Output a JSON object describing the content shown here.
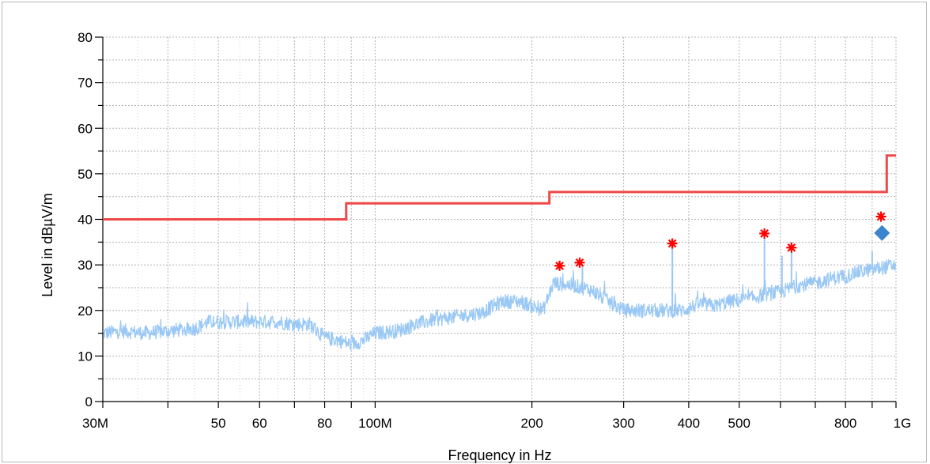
{
  "chart_data": {
    "type": "line",
    "title": "",
    "xlabel": "Frequency in Hz",
    "ylabel": "Level in dBµV/m",
    "x_scale": "log",
    "xlim": [
      30000000,
      1000000000
    ],
    "ylim": [
      0,
      80
    ],
    "grid": true,
    "x_tick_labels": [
      {
        "value": 30000000,
        "label": "30M"
      },
      {
        "value": 50000000,
        "label": "50"
      },
      {
        "value": 60000000,
        "label": "60"
      },
      {
        "value": 80000000,
        "label": "80"
      },
      {
        "value": 100000000,
        "label": "100M"
      },
      {
        "value": 200000000,
        "label": "200"
      },
      {
        "value": 300000000,
        "label": "300"
      },
      {
        "value": 400000000,
        "label": "400"
      },
      {
        "value": 500000000,
        "label": "500"
      },
      {
        "value": 800000000,
        "label": "800"
      },
      {
        "value": 1000000000,
        "label": "1G"
      }
    ],
    "y_ticks": [
      0,
      10,
      20,
      30,
      40,
      50,
      60,
      70,
      80
    ],
    "colors": {
      "limit": "#f04848",
      "trace": "#99c8f5",
      "peak_marker": "#ff0000",
      "final_marker": "#3a84d0",
      "grid": "#b4b4b4"
    },
    "series": [
      {
        "role": "limit",
        "x": [
          30000000,
          88000000,
          88000000,
          216000000,
          216000000,
          960000000,
          960000000,
          1000000000
        ],
        "values": [
          40,
          40,
          43.5,
          43.5,
          46,
          46,
          54,
          54
        ]
      },
      {
        "role": "measurement",
        "x": [
          30000000,
          33000000,
          36000000,
          40000000,
          45000000,
          48000000,
          52000000,
          56000000,
          60000000,
          65000000,
          70000000,
          75000000,
          80000000,
          85000000,
          90000000,
          95000000,
          100000000,
          110000000,
          120000000,
          130000000,
          140000000,
          150000000,
          160000000,
          175000000,
          190000000,
          200000000,
          210000000,
          220000000,
          240000000,
          260000000,
          280000000,
          300000000,
          330000000,
          360000000,
          390000000,
          420000000,
          450000000,
          480000000,
          520000000,
          560000000,
          600000000,
          650000000,
          700000000,
          750000000,
          800000000,
          850000000,
          900000000,
          950000000,
          1000000000
        ],
        "values": [
          15,
          15.5,
          15,
          15.5,
          16,
          17.5,
          17.5,
          17.5,
          17.5,
          17.5,
          17,
          17,
          14,
          13.5,
          12.5,
          13.5,
          15,
          15.5,
          17,
          18,
          18.5,
          19,
          19.5,
          22,
          22,
          21,
          20,
          26,
          25.5,
          24.5,
          22,
          20,
          20,
          20,
          20,
          21.5,
          21,
          22,
          22.5,
          23.5,
          24,
          25.5,
          26,
          27,
          27.5,
          28.5,
          29,
          29.5,
          30
        ]
      }
    ],
    "spikes": [
      {
        "x": 250000000,
        "y": 30
      },
      {
        "x": 372000000,
        "y": 35
      },
      {
        "x": 559000000,
        "y": 36.5
      },
      {
        "x": 604000000,
        "y": 32
      },
      {
        "x": 630000000,
        "y": 34
      },
      {
        "x": 900000000,
        "y": 33
      }
    ],
    "peak_markers": [
      {
        "x": 226000000,
        "y": 29.8
      },
      {
        "x": 247000000,
        "y": 30.5
      },
      {
        "x": 372000000,
        "y": 34.7
      },
      {
        "x": 559000000,
        "y": 36.9
      },
      {
        "x": 630000000,
        "y": 33.8
      },
      {
        "x": 936000000,
        "y": 40.6
      }
    ],
    "final_markers": [
      {
        "x": 940000000,
        "y": 37
      }
    ]
  }
}
